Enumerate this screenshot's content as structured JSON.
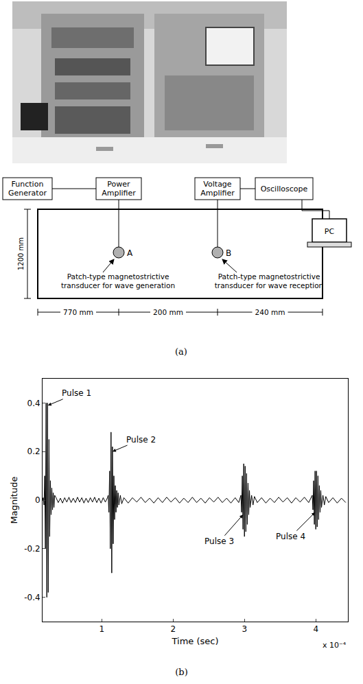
{
  "diagram": {
    "instruments": {
      "function_generator": "Function Generator",
      "power_amplifier": "Power Amplifier",
      "voltage_amplifier": "Voltage Amplifier",
      "oscilloscope": "Oscilloscope",
      "pc": "PC"
    },
    "plate": {
      "height_label": "1200 mm",
      "dimensions": [
        "770 mm",
        "200 mm",
        "240 mm"
      ]
    },
    "transducers": [
      {
        "label": "A",
        "description": "Patch-type magnetostrictive transducer for wave generation"
      },
      {
        "label": "B",
        "description": "Patch-type magnetostrictive transducer for wave reception"
      }
    ],
    "panel_label": "(a)"
  },
  "chart_panel_label": "(b)",
  "chart_data": {
    "type": "line",
    "xlabel": "Time (sec)",
    "ylabel": "Magnitude",
    "x_multiplier": "x 10⁻⁴",
    "color": "#000000",
    "grid": false,
    "xlim": [
      0.17,
      4.45
    ],
    "xticks": [
      1,
      2,
      3,
      4
    ],
    "ylim": [
      -0.5,
      0.5
    ],
    "yticks": [
      -0.4,
      -0.2,
      0,
      0.2,
      0.4
    ],
    "x": [
      0.17,
      0.18,
      0.19,
      0.2,
      0.21,
      0.22,
      0.23,
      0.24,
      0.25,
      0.26,
      0.27,
      0.28,
      0.29,
      0.3,
      0.31,
      0.32,
      0.33,
      0.34,
      0.36,
      0.39,
      0.42,
      0.45,
      0.48,
      0.51,
      0.54,
      0.57,
      0.6,
      0.63,
      0.66,
      0.69,
      0.72,
      0.75,
      0.78,
      0.81,
      0.84,
      0.87,
      0.9,
      0.93,
      0.96,
      0.99,
      1.02,
      1.05,
      1.08,
      1.09,
      1.1,
      1.11,
      1.12,
      1.13,
      1.14,
      1.15,
      1.16,
      1.17,
      1.18,
      1.19,
      1.2,
      1.21,
      1.22,
      1.23,
      1.24,
      1.26,
      1.28,
      1.31,
      1.37,
      1.43,
      1.49,
      1.55,
      1.61,
      1.67,
      1.73,
      1.79,
      1.85,
      1.91,
      1.97,
      2.03,
      2.09,
      2.15,
      2.21,
      2.27,
      2.33,
      2.39,
      2.45,
      2.51,
      2.57,
      2.63,
      2.69,
      2.75,
      2.81,
      2.87,
      2.92,
      2.95,
      2.96,
      2.97,
      2.98,
      2.99,
      3.0,
      3.01,
      3.02,
      3.03,
      3.04,
      3.05,
      3.06,
      3.07,
      3.08,
      3.1,
      3.12,
      3.14,
      3.18,
      3.24,
      3.3,
      3.36,
      3.42,
      3.48,
      3.54,
      3.6,
      3.66,
      3.72,
      3.78,
      3.84,
      3.9,
      3.93,
      3.95,
      3.96,
      3.97,
      3.98,
      3.99,
      4.0,
      4.01,
      4.02,
      4.03,
      4.04,
      4.05,
      4.06,
      4.07,
      4.08,
      4.1,
      4.12,
      4.14,
      4.18,
      4.24,
      4.3,
      4.36,
      4.42
    ],
    "values": [
      0,
      0.01,
      -0.02,
      0.1,
      -0.2,
      0.4,
      -0.4,
      0.4,
      -0.38,
      0.25,
      -0.15,
      0.08,
      -0.06,
      0.05,
      -0.04,
      0.03,
      -0.03,
      0.02,
      0.01,
      -0.01,
      0.008,
      -0.012,
      0.01,
      -0.008,
      0.012,
      -0.01,
      0.008,
      -0.01,
      0.012,
      -0.008,
      0.01,
      -0.012,
      0.008,
      -0.01,
      0.01,
      -0.008,
      0.012,
      -0.01,
      0.008,
      -0.012,
      0.01,
      -0.008,
      0.01,
      0.02,
      -0.05,
      0.12,
      -0.2,
      0.28,
      -0.3,
      0.22,
      -0.18,
      0.1,
      -0.08,
      0.06,
      -0.05,
      0.04,
      -0.03,
      0.03,
      -0.02,
      0.02,
      -0.015,
      0.01,
      -0.012,
      0.01,
      -0.008,
      0.012,
      -0.01,
      0.008,
      -0.012,
      0.01,
      -0.01,
      0.012,
      -0.008,
      0.01,
      -0.012,
      0.008,
      -0.01,
      0.012,
      -0.01,
      0.008,
      -0.012,
      0.01,
      -0.008,
      0.012,
      -0.01,
      0.008,
      -0.012,
      0.01,
      -0.01,
      0.02,
      -0.05,
      0.1,
      -0.12,
      0.15,
      -0.15,
      0.14,
      -0.13,
      0.11,
      -0.1,
      0.07,
      -0.06,
      0.04,
      -0.03,
      0.02,
      -0.02,
      0.015,
      -0.01,
      0.01,
      -0.012,
      0.008,
      -0.01,
      0.012,
      -0.008,
      0.01,
      -0.012,
      0.01,
      -0.008,
      0.012,
      -0.01,
      0.008,
      0.02,
      -0.04,
      0.08,
      -0.1,
      0.12,
      -0.12,
      0.12,
      -0.11,
      0.1,
      -0.08,
      0.06,
      -0.05,
      0.04,
      -0.03,
      0.02,
      -0.02,
      0.015,
      -0.01,
      0.01,
      -0.012,
      0.008,
      -0.01
    ],
    "annotations": [
      {
        "text": "Pulse 1",
        "x": 0.245,
        "y": 0.39,
        "text_x": 0.65,
        "text_y": 0.44
      },
      {
        "text": "Pulse 2",
        "x": 1.15,
        "y": 0.2,
        "text_x": 1.55,
        "text_y": 0.25
      },
      {
        "text": "Pulse 3",
        "x": 2.98,
        "y": -0.06,
        "text_x": 2.65,
        "text_y": -0.17
      },
      {
        "text": "Pulse 4",
        "x": 3.99,
        "y": -0.05,
        "text_x": 3.65,
        "text_y": -0.15
      }
    ]
  }
}
